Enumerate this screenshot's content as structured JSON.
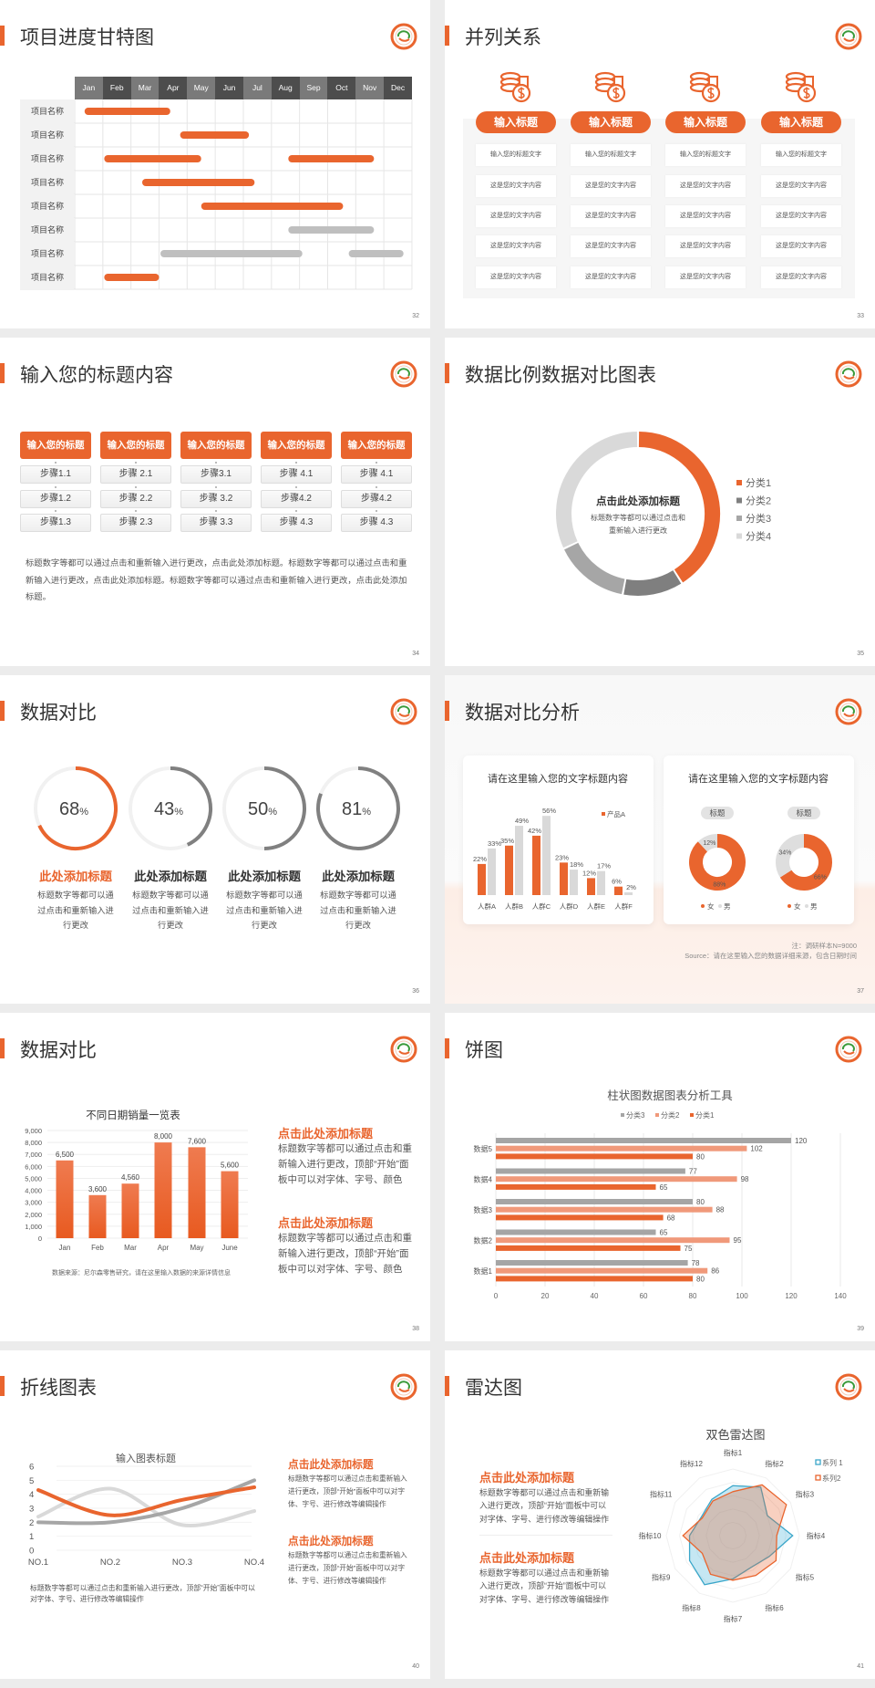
{
  "colors": {
    "accent": "#e9652e",
    "accent_light": "#f0997a",
    "gray_dark": "#7f7f7f",
    "gray": "#a6a6a6",
    "gray_light": "#d9d9d9",
    "teal": "#3aa6c9"
  },
  "slides": {
    "s32": {
      "title": "项目进度甘特图",
      "page": "32",
      "months": [
        "Jan",
        "Feb",
        "Mar",
        "Apr",
        "May",
        "Jun",
        "Jul",
        "Aug",
        "Sep",
        "Oct",
        "Nov",
        "Dec"
      ],
      "rows": [
        {
          "label": "项目名称",
          "bars": [
            {
              "start": 0.35,
              "end": 3.4,
              "color": "orange"
            }
          ]
        },
        {
          "label": "项目名称",
          "bars": [
            {
              "start": 3.75,
              "end": 6.2,
              "color": "orange"
            }
          ]
        },
        {
          "label": "项目名称",
          "bars": [
            {
              "start": 1.05,
              "end": 4.5,
              "color": "orange"
            },
            {
              "start": 7.6,
              "end": 10.65,
              "color": "orange"
            }
          ]
        },
        {
          "label": "项目名称",
          "bars": [
            {
              "start": 2.4,
              "end": 6.4,
              "color": "orange"
            }
          ]
        },
        {
          "label": "项目名称",
          "bars": [
            {
              "start": 4.5,
              "end": 9.55,
              "color": "orange"
            }
          ]
        },
        {
          "label": "项目名称",
          "bars": [
            {
              "start": 7.6,
              "end": 10.65,
              "color": "gray"
            }
          ]
        },
        {
          "label": "项目名称",
          "bars": [
            {
              "start": 3.05,
              "end": 8.1,
              "color": "gray"
            },
            {
              "start": 9.75,
              "end": 11.7,
              "color": "gray"
            }
          ]
        },
        {
          "label": "项目名称",
          "bars": [
            {
              "start": 1.05,
              "end": 3.0,
              "color": "orange"
            }
          ]
        }
      ]
    },
    "s33": {
      "title": "并列关系",
      "page": "33",
      "columns": [
        {
          "button": "输入标题",
          "icon": "coins-dollar-icon",
          "cells": [
            "输入您的标题文字",
            "这是您的文字内容",
            "这是您的文字内容",
            "这是您的文字内容",
            "这是您的文字内容"
          ]
        },
        {
          "button": "输入标题",
          "icon": "coins-dollar-icon",
          "cells": [
            "输入您的标题文字",
            "这是您的文字内容",
            "这是您的文字内容",
            "这是您的文字内容",
            "这是您的文字内容"
          ]
        },
        {
          "button": "输入标题",
          "icon": "coins-dollar-icon",
          "cells": [
            "输入您的标题文字",
            "这是您的文字内容",
            "这是您的文字内容",
            "这是您的文字内容",
            "这是您的文字内容"
          ]
        },
        {
          "button": "输入标题",
          "icon": "coins-dollar-icon",
          "cells": [
            "输入您的标题文字",
            "这是您的文字内容",
            "这是您的文字内容",
            "这是您的文字内容",
            "这是您的文字内容"
          ]
        }
      ]
    },
    "s34": {
      "title": "输入您的标题内容",
      "page": "34",
      "columns": [
        {
          "header": "输入您的标题",
          "steps": [
            "步骤1.1",
            "步骤1.2",
            "步骤1.3"
          ]
        },
        {
          "header": "输入您的标题",
          "steps": [
            "步骤 2.1",
            "步骤 2.2",
            "步骤 2.3"
          ]
        },
        {
          "header": "输入您的标题",
          "steps": [
            "步骤3.1",
            "步骤 3.2",
            "步骤 3.3"
          ]
        },
        {
          "header": "输入您的标题",
          "steps": [
            "步骤 4.1",
            "步骤4.2",
            "步骤 4.3"
          ]
        },
        {
          "header": "输入您的标题",
          "steps": [
            "步骤 4.1",
            "步骤4.2",
            "步骤 4.3"
          ]
        }
      ],
      "paragraph": "标题数字等都可以通过点击和重新输入进行更改，点击此处添加标题。标题数字等都可以通过点击和重新输入进行更改，点击此处添加标题。标题数字等都可以通过点击和重新输入进行更改，点击此处添加标题。"
    },
    "s35": {
      "title": "数据比例数据对比图表",
      "page": "35",
      "center_title": "点击此处添加标题",
      "center_lines": [
        "标题数字等都可以通过点击和",
        "重新输入进行更改"
      ],
      "chart_data": {
        "type": "pie",
        "donut": true,
        "categories": [
          "分类1",
          "分类2",
          "分类3",
          "分类4"
        ],
        "values": [
          41,
          12,
          15,
          32
        ],
        "colors": [
          "#e9652e",
          "#7f7f7f",
          "#a6a6a6",
          "#d9d9d9"
        ],
        "legend": "right"
      }
    },
    "s36": {
      "title": "数据对比",
      "page": "36",
      "items": [
        {
          "value": 68,
          "value_text": "68",
          "unit": "%",
          "title": "此处添加标题",
          "text": "标题数字等都可以通过点击和重新输入进行更改",
          "color": "#e9652e"
        },
        {
          "value": 43,
          "value_text": "43",
          "unit": "%",
          "title": "此处添加标题",
          "text": "标题数字等都可以通过点击和重新输入进行更改",
          "color": "#808080"
        },
        {
          "value": 50,
          "value_text": "50",
          "unit": "%",
          "title": "此处添加标题",
          "text": "标题数字等都可以通过点击和重新输入进行更改",
          "color": "#808080"
        },
        {
          "value": 81,
          "value_text": "81",
          "unit": "%",
          "title": "此处添加标题",
          "text": "标题数字等都可以通过点击和重新输入进行更改",
          "color": "#808080"
        }
      ]
    },
    "s37": {
      "title": "数据对比分析",
      "page": "37",
      "bar_card": {
        "title": "请在这里输入您的文字标题内容",
        "chart_data": {
          "type": "bar",
          "categories": [
            "人群A",
            "人群B",
            "人群C",
            "人群D",
            "人群E",
            "人群F"
          ],
          "series": [
            {
              "name": "产品A",
              "values": [
                22,
                35,
                42,
                23,
                12,
                6
              ],
              "labels": [
                "22%",
                "35%",
                "42%",
                "23%",
                "12%",
                "6%"
              ],
              "color": "#e9652e"
            },
            {
              "values": [
                33,
                49,
                56,
                18,
                17,
                2
              ],
              "labels": [
                "33%",
                "49%",
                "56%",
                "18%",
                "17%",
                "2%"
              ],
              "color": "#d9d9d9"
            }
          ],
          "legend": "top-right"
        }
      },
      "donut_card": {
        "title": "请在这里输入您的文字标题内容",
        "legend": [
          "女",
          "男"
        ],
        "donuts": [
          {
            "label": "标题",
            "female": 88,
            "male": 12,
            "female_text": "88%",
            "male_text": "12%"
          },
          {
            "label": "标题",
            "female": 66,
            "male": 34,
            "female_text": "66%",
            "male_text": "34%"
          }
        ]
      },
      "note": "注：调研样本N=9000",
      "source": "Source：请在这里输入您的数据详细来源，包含日期时间"
    },
    "s38": {
      "title": "数据对比",
      "page": "38",
      "chart_data": {
        "type": "bar",
        "title": "不同日期销量一览表",
        "categories": [
          "Jan",
          "Feb",
          "Mar",
          "Apr",
          "May",
          "June"
        ],
        "values": [
          6500,
          3600,
          4560,
          8000,
          7600,
          5600
        ],
        "value_labels": [
          "6,500",
          "3,600",
          "4,560",
          "8,000",
          "7,600",
          "5,600"
        ],
        "ylim": [
          0,
          9000
        ],
        "yticks": [
          "0",
          "1,000",
          "2,000",
          "3,000",
          "4,000",
          "5,000",
          "6,000",
          "7,000",
          "8,000",
          "9,000"
        ],
        "grid": true
      },
      "source": "数据来源：尼尔森零售研究，请在这里输入数据的来源详情信息",
      "blocks": [
        {
          "title": "点击此处添加标题",
          "text": "标题数字等都可以通过点击和重新输入进行更改，顶部“开始”面板中可以对字体、字号、颜色"
        },
        {
          "title": "点击此处添加标题",
          "text": "标题数字等都可以通过点击和重新输入进行更改，顶部“开始”面板中可以对字体、字号、颜色"
        }
      ]
    },
    "s39": {
      "title": "饼图",
      "page": "39",
      "chart_data": {
        "type": "bar",
        "orientation": "horizontal",
        "title": "柱状图数据图表分析工具",
        "categories": [
          "数据5",
          "数据4",
          "数据3",
          "数据2",
          "数据1"
        ],
        "series": [
          {
            "name": "分类3",
            "values": [
              120,
              77,
              80,
              65,
              78
            ],
            "color": "#a5a5a5"
          },
          {
            "name": "分类2",
            "values": [
              102,
              98,
              88,
              95,
              86
            ],
            "color": "#f0997a"
          },
          {
            "name": "分类1",
            "values": [
              80,
              65,
              68,
              75,
              80
            ],
            "color": "#e9652e"
          }
        ],
        "xlim": [
          0,
          140
        ],
        "xticks": [
          "0",
          "20",
          "40",
          "60",
          "80",
          "100",
          "120",
          "140"
        ],
        "legend": "top",
        "grid": true
      }
    },
    "s40": {
      "title": "折线图表",
      "page": "40",
      "chart_data": {
        "type": "line",
        "title": "输入图表标题",
        "smooth": true,
        "categories": [
          "NO.1",
          "NO.2",
          "NO.3",
          "NO.4"
        ],
        "series": [
          {
            "values": [
              4.3,
              2.5,
              3.6,
              4.5
            ],
            "color": "#e9652e"
          },
          {
            "values": [
              2.0,
              2.0,
              3.0,
              5.0
            ],
            "color": "#a6a6a6"
          },
          {
            "values": [
              2.4,
              4.4,
              1.8,
              2.8
            ],
            "color": "#d9d9d9"
          }
        ],
        "ylim": [
          0,
          6
        ],
        "yticks": [
          "0",
          "1",
          "2",
          "3",
          "4",
          "5",
          "6"
        ],
        "grid": true
      },
      "bottom_text": "标题数字等都可以通过点击和重新输入进行更改，顶部“开始”面板中可以对字体、字号、进行修改等编辑操作",
      "blocks": [
        {
          "title": "点击此处添加标题",
          "text": "标题数字等都可以通过点击和重新输入进行更改，顶部“开始”面板中可以对字体、字号、进行修改等编辑操作"
        },
        {
          "title": "点击此处添加标题",
          "text": "标题数字等都可以通过点击和重新输入进行更改，顶部“开始”面板中可以对字体、字号、进行修改等编辑操作"
        }
      ]
    },
    "s41": {
      "title": "雷达图",
      "page": "41",
      "chart_data": {
        "type": "radar",
        "title": "双色雷达图",
        "axes": [
          "指标1",
          "指标2",
          "指标3",
          "指标4",
          "指标5",
          "指标6",
          "指标7",
          "指标8",
          "指标9",
          "指标10",
          "指标11",
          "指标12"
        ],
        "series": [
          {
            "name": "系列 1",
            "values": [
              7.5,
              8.4,
              6.0,
              9.0,
              6.3,
              5.5,
              6.5,
              8.5,
              7.5,
              6.5,
              5.5,
              6.3
            ],
            "color": "#3aa6c9"
          },
          {
            "name": "系列2",
            "values": [
              6.6,
              8.8,
              9.3,
              6.6,
              7.5,
              6.9,
              6.7,
              6.7,
              5.3,
              7.5,
              5.3,
              6.0
            ],
            "color": "#e9652e"
          }
        ],
        "rmax": 10,
        "legend": "top-right"
      },
      "blocks": [
        {
          "title": "点击此处添加标题",
          "text": "标题数字等都可以通过点击和重新输入进行更改，顶部“开始”面板中可以对字体、字号、进行修改等编辑操作"
        },
        {
          "title": "点击此处添加标题",
          "text": "标题数字等都可以通过点击和重新输入进行更改，顶部“开始”面板中可以对字体、字号、进行修改等编辑操作"
        }
      ]
    }
  }
}
